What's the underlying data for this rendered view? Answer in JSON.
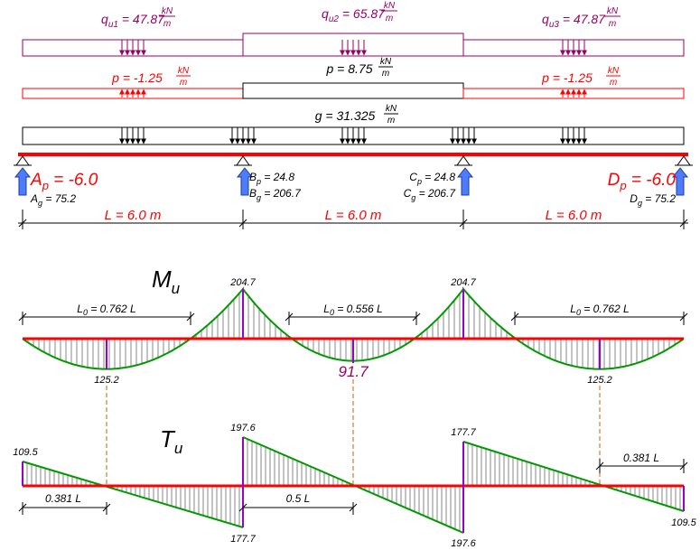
{
  "loads": {
    "qu1": {
      "sym": "q",
      "sub": "u1",
      "eq": " = 47.87 ",
      "num": "kN",
      "den": "m"
    },
    "qu2": {
      "sym": "q",
      "sub": "u2",
      "eq": " = 65.87 ",
      "num": "kN",
      "den": "m"
    },
    "qu3": {
      "sym": "q",
      "sub": "u3",
      "eq": " = 47.87 ",
      "num": "kN",
      "den": "m"
    },
    "p1": {
      "text": "p = -1.25 ",
      "num": "kN",
      "den": "m"
    },
    "p2": {
      "text": "p = 8.75 ",
      "num": "kN",
      "den": "m"
    },
    "p3": {
      "text": "p = -1.25 ",
      "num": "kN",
      "den": "m"
    },
    "g": {
      "text": "g = 31.325 ",
      "num": "kN",
      "den": "m"
    }
  },
  "reactions": {
    "Ap": {
      "sym": "A",
      "sub": "p",
      "val": " = -6.0"
    },
    "Ag": {
      "sym": "A",
      "sub": "g",
      "val": " = 75.2"
    },
    "Bp": {
      "sym": "B",
      "sub": "p",
      "val": " = 24.8"
    },
    "Bg": {
      "sym": "B",
      "sub": "g",
      "val": " = 206.7"
    },
    "Cp": {
      "sym": "C",
      "sub": "p",
      "val": " = 24.8"
    },
    "Cg": {
      "sym": "C",
      "sub": "g",
      "val": " = 206.7"
    },
    "Dp": {
      "sym": "D",
      "sub": "p",
      "val": " = -6.0"
    },
    "Dg": {
      "sym": "D",
      "sub": "g",
      "val": " = 75.2"
    }
  },
  "spans": [
    "L = 6.0 m",
    "L = 6.0 m",
    "L = 6.0 m"
  ],
  "moment": {
    "title_sym": "M",
    "title_sub": "u",
    "support_B": "204.7",
    "support_C": "204.7",
    "span1_max": "125.2",
    "span2_max": "91.7",
    "span3_max": "125.2",
    "L0_1": {
      "pre": "L",
      "sub": "0",
      "post": " = 0.762 L"
    },
    "L0_2": {
      "pre": "L",
      "sub": "0",
      "post": " = 0.556 L"
    },
    "L0_3": {
      "pre": "L",
      "sub": "0",
      "post": " = 0.762 L"
    }
  },
  "shear": {
    "title_sym": "T",
    "title_sub": "u",
    "A": "109.5",
    "B_left": "177.7",
    "B_right": "197.6",
    "C_left": "197.6",
    "C_right": "177.7",
    "D": "109.5",
    "d1": "0.381 L",
    "d2": "0.5 L",
    "d3": "0.381 L"
  },
  "colors": {
    "beam_red": "#ff0000",
    "purple": "#990066",
    "green": "#009900",
    "violet": "#9900cc",
    "dashed": "#cc6600",
    "arrow_blue": "#3366ff"
  }
}
